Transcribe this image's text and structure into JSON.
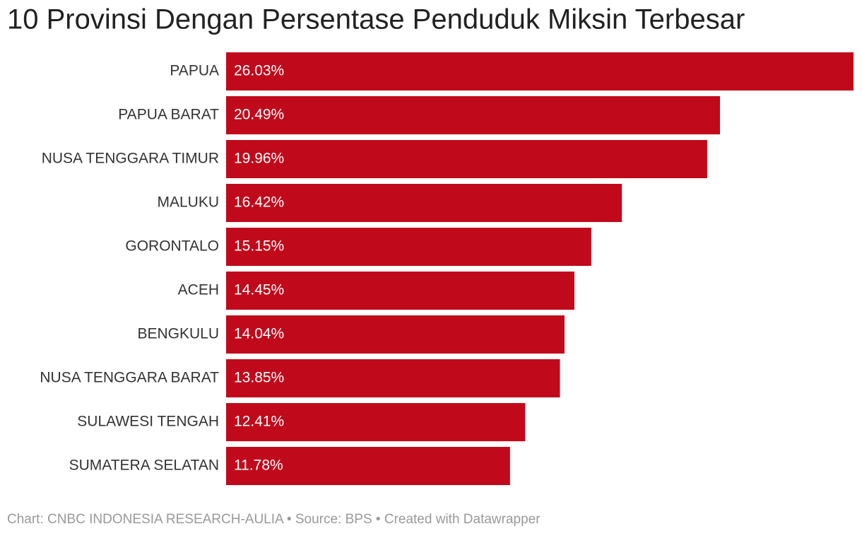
{
  "chart_data": {
    "type": "bar",
    "orientation": "horizontal",
    "title": "10 Provinsi Dengan Persentase Penduduk Miksin Terbesar",
    "categories": [
      "PAPUA",
      "PAPUA BARAT",
      "NUSA TENGGARA TIMUR",
      "MALUKU",
      "GORONTALO",
      "ACEH",
      "BENGKULU",
      "NUSA TENGGARA BARAT",
      "SULAWESI TENGAH",
      "SUMATERA SELATAN"
    ],
    "values": [
      26.03,
      20.49,
      19.96,
      16.42,
      15.15,
      14.45,
      14.04,
      13.85,
      12.41,
      11.78
    ],
    "value_labels": [
      "26.03%",
      "20.49%",
      "19.96%",
      "16.42%",
      "15.15%",
      "14.45%",
      "14.04%",
      "13.85%",
      "12.41%",
      "11.78%"
    ],
    "color": "#c00a1b",
    "footer": "Chart: CNBC INDONESIA RESEARCH-AULIA • Source: BPS • Created with Datawrapper"
  }
}
